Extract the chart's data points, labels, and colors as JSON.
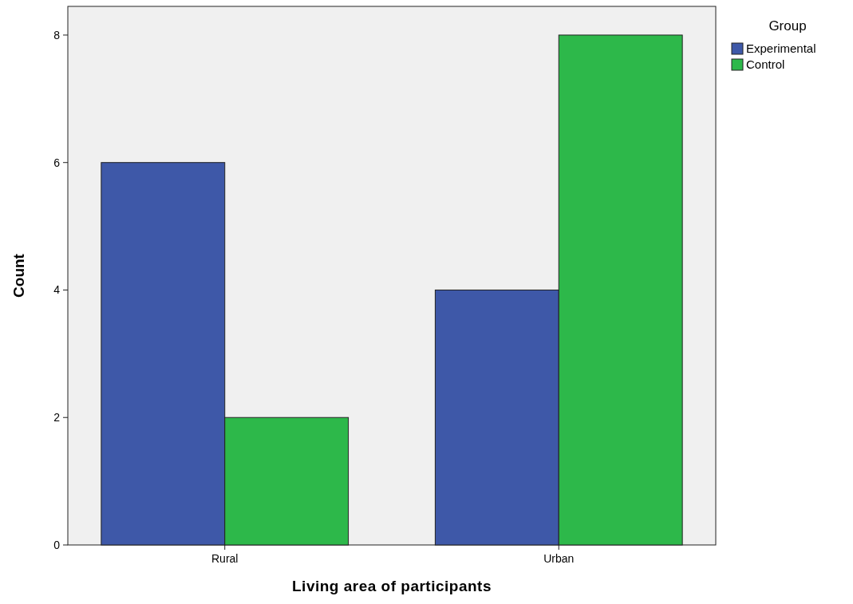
{
  "chart_data": {
    "type": "bar",
    "xlabel": "Living area of participants",
    "ylabel": "Count",
    "legend_title": "Group",
    "categories": [
      "Rural",
      "Urban"
    ],
    "series": [
      {
        "name": "Experimental",
        "color": "#3e58a8",
        "values": [
          6,
          4
        ]
      },
      {
        "name": "Control",
        "color": "#2db84a",
        "values": [
          2,
          8
        ]
      }
    ],
    "ylim": [
      0,
      8.45
    ],
    "yticks": [
      0,
      2,
      4,
      6,
      8
    ],
    "grid": false,
    "legend": "top right"
  }
}
